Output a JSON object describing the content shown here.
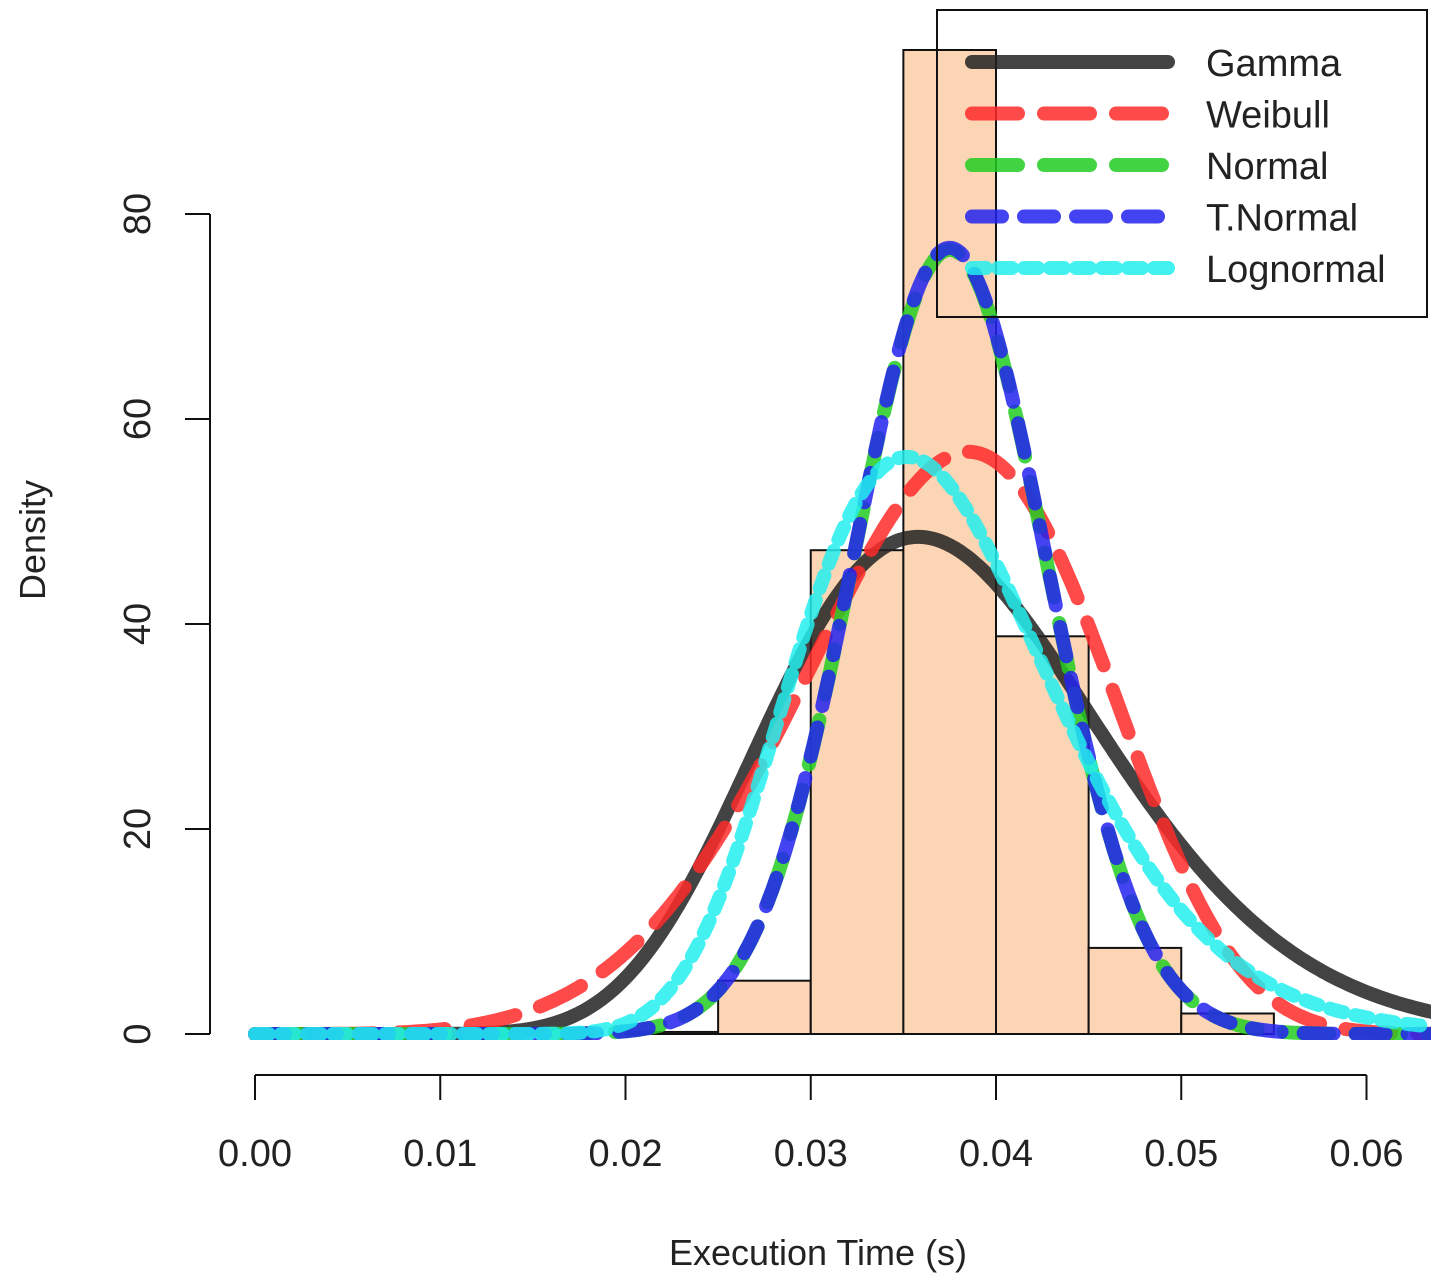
{
  "chart_data": {
    "type": "histogram-with-density-curves",
    "xlabel": "Execution Time (s)",
    "ylabel": "Density",
    "xlim": [
      0.0,
      0.06
    ],
    "ylim": [
      0,
      80
    ],
    "x_ticks": [
      "0.00",
      "0.01",
      "0.02",
      "0.03",
      "0.04",
      "0.05",
      "0.06"
    ],
    "y_ticks": [
      "0",
      "20",
      "40",
      "60",
      "80"
    ],
    "bar_color": "#fcd5b5",
    "histogram": {
      "bins": [
        {
          "x0": 0.02,
          "x1": 0.025,
          "density": 0.2
        },
        {
          "x0": 0.025,
          "x1": 0.03,
          "density": 5.2
        },
        {
          "x0": 0.03,
          "x1": 0.035,
          "density": 47.2
        },
        {
          "x0": 0.035,
          "x1": 0.04,
          "density": 96.0
        },
        {
          "x0": 0.04,
          "x1": 0.045,
          "density": 38.8
        },
        {
          "x0": 0.045,
          "x1": 0.05,
          "density": 8.4
        },
        {
          "x0": 0.05,
          "x1": 0.055,
          "density": 2.0
        }
      ]
    },
    "series": [
      {
        "name": "Gamma",
        "color": "#222222",
        "dash": "solid",
        "peak": 48.5,
        "mode": 0.0358
      },
      {
        "name": "Weibull",
        "color": "#ff2a2a",
        "dash": "long-dash",
        "peak": 56.8,
        "mode": 0.0385
      },
      {
        "name": "Normal",
        "color": "#22cc22",
        "dash": "long-dash",
        "peak": 76.5,
        "mode": 0.0375
      },
      {
        "name": "T.Normal",
        "color": "#2222ee",
        "dash": "dash",
        "peak": 76.7,
        "mode": 0.0375
      },
      {
        "name": "Lognormal",
        "color": "#22eeee",
        "dash": "short-dash",
        "peak": 56.3,
        "mode": 0.0352
      }
    ],
    "legend": {
      "placement": "top-right",
      "entries": [
        "Gamma",
        "Weibull",
        "Normal",
        "T.Normal",
        "Lognormal"
      ]
    }
  }
}
